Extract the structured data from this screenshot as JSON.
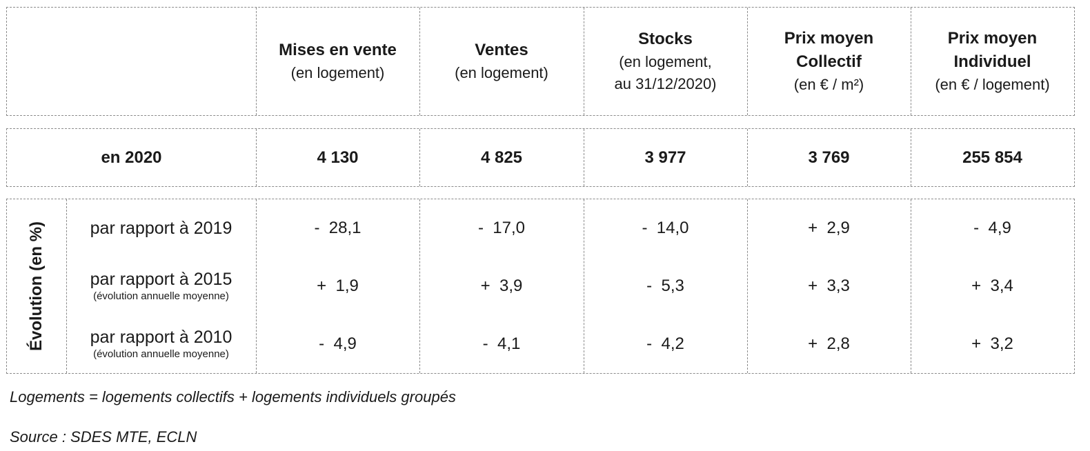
{
  "header": {
    "columns": [
      {
        "main": "Mises en vente",
        "sub": "(en logement)"
      },
      {
        "main": "Ventes",
        "sub": "(en logement)"
      },
      {
        "main": "Stocks",
        "sub": "(en logement,",
        "sub2": "au 31/12/2020)"
      },
      {
        "main": "Prix moyen",
        "main2": "Collectif",
        "sub": "(en € / m²)"
      },
      {
        "main": "Prix moyen",
        "main2": "Individuel",
        "sub": "(en € / logement)"
      }
    ]
  },
  "year_row": {
    "label": "en 2020",
    "values": [
      "4 130",
      "4 825",
      "3 977",
      "3 769",
      "255 854"
    ]
  },
  "evolution": {
    "group_label": "Évolution (en %)",
    "rows": [
      {
        "label": "par rapport à 2019",
        "sub": "",
        "values": [
          "-  28,1",
          "-  17,0",
          "-  14,0",
          "+  2,9",
          "-  4,9"
        ]
      },
      {
        "label": "par rapport à 2015",
        "sub": "(évolution annuelle moyenne)",
        "values": [
          "+  1,9",
          "+  3,9",
          "-  5,3",
          "+  3,3",
          "+  3,4"
        ]
      },
      {
        "label": "par rapport à 2010",
        "sub": "(évolution annuelle moyenne)",
        "values": [
          "-  4,9",
          "-  4,1",
          "-  4,2",
          "+  2,8",
          "+  3,2"
        ]
      }
    ]
  },
  "notes": {
    "definition": "Logements = logements collectifs + logements individuels groupés",
    "source": "Source : SDES MTE, ECLN"
  }
}
